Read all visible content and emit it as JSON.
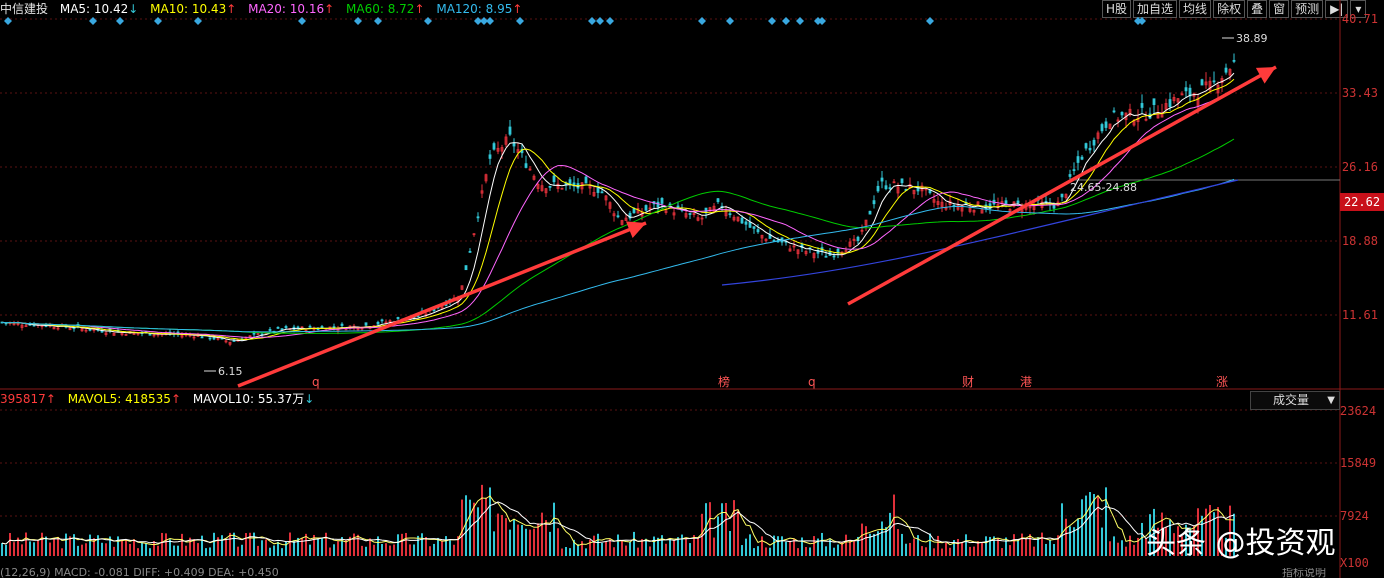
{
  "header": {
    "stock_name": "中信建投",
    "ma5": "MA5: 10.42",
    "ma10": "MA10: 10.43",
    "ma20": "MA20: 10.16",
    "ma60": "MA60: 8.72",
    "ma120": "MA120: 8.95",
    "up_arrow": "↑",
    "down_arrow": "↓"
  },
  "toolbar": {
    "buttons": [
      "H股",
      "加自选",
      "均线",
      "除权",
      "叠",
      "窗",
      "预测"
    ],
    "icon_buttons": [
      "play-end-icon",
      "chevron-down-icon"
    ]
  },
  "price_axis": {
    "labels": [
      "40.71",
      "33.43",
      "26.16",
      "18.88",
      "11.61"
    ],
    "current_price": "22.62"
  },
  "annotations": {
    "high_label": "38.89",
    "low_label": "6.15",
    "range_label": "24.65-24.88",
    "event_markers": [
      "q",
      "榜",
      "q",
      "财",
      "港",
      "涨"
    ]
  },
  "volume": {
    "vol": "395817",
    "mavol5": "MAVOL5: 418535",
    "mavol10": "MAVOL10: 55.37万",
    "indicator_select": "成交量",
    "axis_labels": [
      "23624",
      "15849",
      "7924",
      "X100"
    ]
  },
  "macd_bar": {
    "text": "(12,26,9)  MACD: -0.081   DIFF: +0.409   DEA: +0.450",
    "right_text": "指标说明"
  },
  "watermark": {
    "text": "头条 @投资观"
  },
  "colors": {
    "up": "#e0303a",
    "down": "#33c8d8",
    "ma5": "#ffffff",
    "ma10": "#ffff00",
    "ma20": "#ff66ff",
    "ma60": "#00cc00",
    "ma120": "#33bbee",
    "ma250": "#3344dd",
    "trend_arrow": "#ff3b3b",
    "marker": "#39a8e0"
  },
  "chart_data": {
    "type": "candlestick",
    "y_range": [
      6.15,
      40.71
    ],
    "price_levels": [
      40.71,
      33.43,
      26.16,
      18.88,
      11.61
    ],
    "trend_arrows": 2,
    "volume_range": [
      0,
      23624
    ]
  }
}
